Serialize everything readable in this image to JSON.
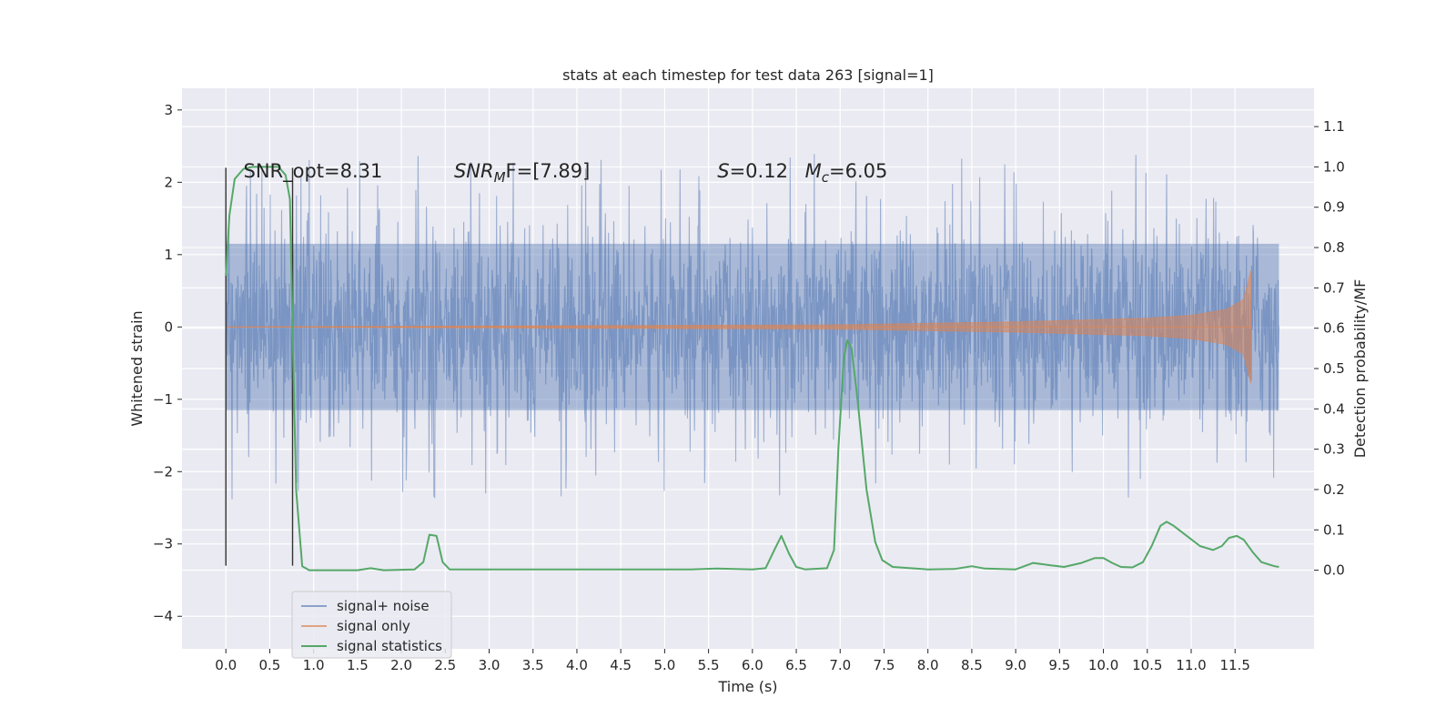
{
  "chart_data": {
    "type": "line",
    "title": "stats at each timestep for test data 263 [signal=1]",
    "xlabel": "Time (s)",
    "ylabel": "Whitened strain",
    "y2label": "Detection probability/MF",
    "xlim": [
      -0.5,
      12.4
    ],
    "ylim": [
      -4.45,
      3.3
    ],
    "y2lim": [
      -0.195,
      1.195
    ],
    "x_ticks": [
      0.0,
      0.5,
      1.0,
      1.5,
      2.0,
      2.5,
      3.0,
      3.5,
      4.0,
      4.5,
      5.0,
      5.5,
      6.0,
      6.5,
      7.0,
      7.5,
      8.0,
      8.5,
      9.0,
      9.5,
      10.0,
      10.5,
      11.0,
      11.5
    ],
    "x_tick_labels": [
      "0.0",
      "0.5",
      "1.0",
      "1.5",
      "2.0",
      "2.5",
      "3.0",
      "3.5",
      "4.0",
      "4.5",
      "5.0",
      "5.5",
      "6.0",
      "6.5",
      "7.0",
      "7.5",
      "8.0",
      "8.5",
      "9.0",
      "9.5",
      "10.0",
      "10.5",
      "11.0",
      "11.5"
    ],
    "y_ticks": [
      -4,
      -3,
      -2,
      -1,
      0,
      1,
      2,
      3
    ],
    "y_tick_labels": [
      "−4",
      "−3",
      "−2",
      "−1",
      "0",
      "1",
      "2",
      "3"
    ],
    "y2_ticks": [
      0.0,
      0.1,
      0.2,
      0.3,
      0.4,
      0.5,
      0.6,
      0.7,
      0.8,
      0.9,
      1.0,
      1.1
    ],
    "y2_tick_labels": [
      "0.0",
      "0.1",
      "0.2",
      "0.3",
      "0.4",
      "0.5",
      "0.6",
      "0.7",
      "0.8",
      "0.9",
      "1.0",
      "1.1"
    ],
    "grid": true,
    "legend_position": "lower-left",
    "series": [
      {
        "name": "signal+ noise",
        "color": "#4c72b0",
        "axis": "left",
        "kind": "noise",
        "x_range": [
          0.0,
          12.0
        ],
        "core_amplitude": 1.15,
        "peak_range": [
          2.2,
          3.0
        ]
      },
      {
        "name": "signal only",
        "color": "#dd8452",
        "axis": "left",
        "kind": "chirp",
        "x_range": [
          0.0,
          11.68
        ],
        "envelope": [
          [
            0.0,
            0.0
          ],
          [
            7.0,
            0.03
          ],
          [
            9.0,
            0.07
          ],
          [
            10.5,
            0.12
          ],
          [
            11.0,
            0.16
          ],
          [
            11.4,
            0.24
          ],
          [
            11.6,
            0.38
          ],
          [
            11.68,
            0.78
          ]
        ]
      },
      {
        "name": "signal statistics",
        "color": "#55a868",
        "axis": "right",
        "kind": "line",
        "points": [
          [
            0.0,
            0.73
          ],
          [
            0.04,
            0.88
          ],
          [
            0.1,
            0.97
          ],
          [
            0.2,
            0.995
          ],
          [
            0.3,
            1.0
          ],
          [
            0.6,
            1.0
          ],
          [
            0.68,
            0.98
          ],
          [
            0.73,
            0.92
          ],
          [
            0.76,
            0.6
          ],
          [
            0.8,
            0.2
          ],
          [
            0.87,
            0.01
          ],
          [
            0.95,
            0.0
          ],
          [
            1.5,
            0.0
          ],
          [
            1.65,
            0.005
          ],
          [
            1.8,
            0.0
          ],
          [
            2.15,
            0.002
          ],
          [
            2.25,
            0.02
          ],
          [
            2.32,
            0.088
          ],
          [
            2.4,
            0.085
          ],
          [
            2.47,
            0.02
          ],
          [
            2.55,
            0.002
          ],
          [
            5.3,
            0.002
          ],
          [
            5.6,
            0.004
          ],
          [
            6.0,
            0.002
          ],
          [
            6.15,
            0.005
          ],
          [
            6.25,
            0.05
          ],
          [
            6.33,
            0.085
          ],
          [
            6.42,
            0.04
          ],
          [
            6.5,
            0.008
          ],
          [
            6.6,
            0.002
          ],
          [
            6.85,
            0.005
          ],
          [
            6.93,
            0.05
          ],
          [
            6.98,
            0.3
          ],
          [
            7.04,
            0.52
          ],
          [
            7.08,
            0.57
          ],
          [
            7.13,
            0.55
          ],
          [
            7.2,
            0.42
          ],
          [
            7.3,
            0.2
          ],
          [
            7.4,
            0.07
          ],
          [
            7.48,
            0.025
          ],
          [
            7.6,
            0.008
          ],
          [
            8.0,
            0.002
          ],
          [
            8.3,
            0.003
          ],
          [
            8.5,
            0.01
          ],
          [
            8.65,
            0.004
          ],
          [
            9.0,
            0.002
          ],
          [
            9.2,
            0.018
          ],
          [
            9.4,
            0.012
          ],
          [
            9.55,
            0.008
          ],
          [
            9.75,
            0.018
          ],
          [
            9.9,
            0.03
          ],
          [
            10.0,
            0.03
          ],
          [
            10.1,
            0.018
          ],
          [
            10.2,
            0.008
          ],
          [
            10.33,
            0.007
          ],
          [
            10.45,
            0.02
          ],
          [
            10.55,
            0.06
          ],
          [
            10.65,
            0.11
          ],
          [
            10.72,
            0.12
          ],
          [
            10.8,
            0.11
          ],
          [
            10.95,
            0.085
          ],
          [
            11.1,
            0.06
          ],
          [
            11.25,
            0.05
          ],
          [
            11.35,
            0.06
          ],
          [
            11.43,
            0.08
          ],
          [
            11.52,
            0.085
          ],
          [
            11.6,
            0.075
          ],
          [
            11.7,
            0.045
          ],
          [
            11.8,
            0.02
          ],
          [
            11.95,
            0.01
          ],
          [
            12.0,
            0.008
          ]
        ]
      }
    ],
    "vlines": [
      0.0,
      0.76
    ],
    "vline_y_range": [
      -3.3,
      2.2
    ],
    "annotations": [
      {
        "text": "SNR_opt=8.31",
        "x": 0.2,
        "y": 2.17
      },
      {
        "text": "SNR",
        "x": 2.6,
        "y": 2.17,
        "sub": "M",
        "tail": "F=[7.89]"
      },
      {
        "text": "S",
        "x": 5.6,
        "y": 2.17,
        "tail": "=0.12"
      },
      {
        "text": "M",
        "x": 6.6,
        "y": 2.17,
        "sub": "c",
        "tail": "=6.05"
      }
    ]
  }
}
